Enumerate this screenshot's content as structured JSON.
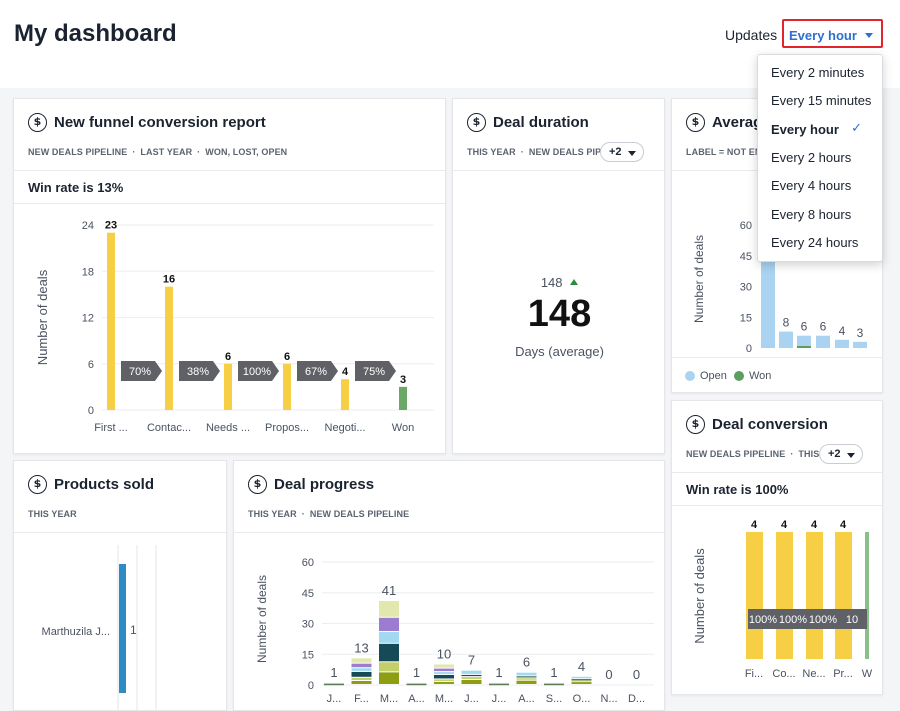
{
  "header": {
    "title": "My dashboard",
    "updates_label": "Updates",
    "updates_value": "Every hour"
  },
  "dropdown": {
    "options": [
      "Every 2 minutes",
      "Every 15 minutes",
      "Every hour",
      "Every 2 hours",
      "Every 4 hours",
      "Every 8 hours",
      "Every 24 hours"
    ],
    "selected": "Every hour",
    "check": "✓"
  },
  "funnel": {
    "title": "New funnel conversion report",
    "filters": [
      "NEW DEALS PIPELINE",
      "LAST YEAR",
      "WON, LOST, OPEN"
    ],
    "win_rate": "Win rate is 13%",
    "chart_data": {
      "type": "bar",
      "ylabel": "Number of deals",
      "ylim": [
        0,
        24
      ],
      "yticks": [
        0,
        6,
        12,
        18,
        24
      ],
      "categories": [
        "First ...",
        "Contac...",
        "Needs ...",
        "Propos...",
        "Negoti...",
        "Won"
      ],
      "values": [
        23,
        16,
        6,
        6,
        4,
        3
      ],
      "conversions": [
        "70%",
        "38%",
        "100%",
        "67%",
        "75%"
      ],
      "colors": [
        "#f6cf45",
        "#f6cf45",
        "#f6cf45",
        "#f6cf45",
        "#f6cf45",
        "#6aa868"
      ]
    }
  },
  "duration": {
    "title": "Deal duration",
    "filters": [
      "THIS YEAR",
      "NEW DEALS PIPELINE"
    ],
    "plus": "+2",
    "small_value": "148",
    "big_value": "148",
    "caption": "Days (average)"
  },
  "average": {
    "title": "Averag",
    "filters": [
      "LABEL = NOT EM"
    ],
    "legend": [
      "Open",
      "Won"
    ],
    "chart_data": {
      "type": "bar",
      "ylabel": "Number of deals",
      "ylim": [
        0,
        60
      ],
      "yticks": [
        0,
        15,
        30,
        45,
        60
      ],
      "categories": [
        "...",
        "...",
        "...",
        "...",
        "...",
        "..."
      ],
      "series": [
        {
          "name": "Open",
          "values": [
            null,
            8,
            6,
            6,
            4,
            3
          ],
          "color": "#a9d3f0"
        },
        {
          "name": "Won",
          "values": [
            null,
            0,
            1,
            0,
            0,
            0
          ],
          "color": "#5b9e5e"
        }
      ],
      "labels": [
        "",
        "8",
        "6",
        "6",
        "4",
        "3"
      ]
    }
  },
  "conversion": {
    "title": "Deal conversion",
    "filters": [
      "NEW DEALS PIPELINE",
      "THIS"
    ],
    "plus": "+2",
    "win_rate": "Win rate is 100%",
    "chart_data": {
      "type": "bar",
      "ylabel": "Number of deals",
      "categories": [
        "Fi...",
        "Co...",
        "Ne...",
        "Pr...",
        "W"
      ],
      "values": [
        4,
        4,
        4,
        4,
        4
      ],
      "labels": [
        "4",
        "4",
        "4",
        "4",
        ""
      ],
      "conversions": [
        "100%",
        "100%",
        "100%",
        "10"
      ]
    }
  },
  "products": {
    "title": "Products sold",
    "filters": [
      "THIS YEAR"
    ],
    "chart_data": {
      "type": "bar",
      "categories": [
        "Marthuzila J..."
      ],
      "values": [
        1
      ],
      "labels": [
        "1"
      ]
    }
  },
  "progress": {
    "title": "Deal progress",
    "filters": [
      "THIS YEAR",
      "NEW DEALS PIPELINE"
    ],
    "chart_data": {
      "type": "bar",
      "ylabel": "Number of deals",
      "ylim": [
        0,
        60
      ],
      "yticks": [
        0,
        15,
        30,
        45,
        60
      ],
      "categories": [
        "J...",
        "F...",
        "M...",
        "A...",
        "M...",
        "J...",
        "J...",
        "A...",
        "S...",
        "O...",
        "N...",
        "D..."
      ],
      "values": [
        1,
        13,
        41,
        1,
        10,
        7,
        1,
        6,
        1,
        4,
        0,
        0
      ],
      "stack_colors": [
        "#8e9e12",
        "#c2cf6a",
        "#174a57",
        "#a3d9f0",
        "#9b7cd1",
        "#e2e8ad"
      ]
    }
  }
}
